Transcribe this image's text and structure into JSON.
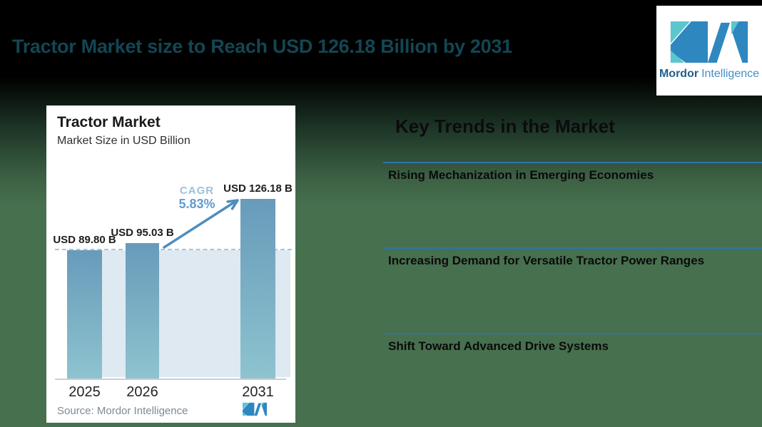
{
  "page": {
    "background_green": "#47704E",
    "background_black": "#000000",
    "title_color": "#134653"
  },
  "header": {
    "title": "Tractor Market size to Reach USD 126.18 Billion by 2031"
  },
  "brand": {
    "name_bold": "Mordor",
    "name_light": "Intelligence",
    "teal": "#5BC6CE",
    "blue": "#2F87C0"
  },
  "chart_card": {
    "title": "Tractor Market",
    "subtitle": "Market Size in USD Billion",
    "cagr_label": "CAGR",
    "cagr_value": "5.83%",
    "source_label": "Source:",
    "source_value": "Mordor Intelligence"
  },
  "chart_data": {
    "type": "bar",
    "title": "Tractor Market",
    "ylabel": "Market Size in USD Billion",
    "categories": [
      "2025",
      "2026",
      "2031"
    ],
    "values": [
      89.8,
      95.03,
      126.18
    ],
    "value_labels": [
      "USD 89.80 B",
      "USD 95.03 B",
      "USD 126.18 B"
    ],
    "ylim": [
      0,
      135
    ],
    "grid": false,
    "annotations": {
      "cagr_label": "CAGR",
      "cagr_value": "5.83%",
      "dashed_baseline_value": 89.8,
      "arrow": "from 2026 bar to 2031 bar"
    },
    "bar_color_top": "#679BBA",
    "bar_color_bottom": "#8EC3CF",
    "shade_color": "#DEE9F2",
    "dash_color": "#A5C7DC",
    "arrow_color": "#4E8DBE"
  },
  "trends": {
    "heading": "Key Trends in the Market",
    "line_color": "#2E74B0",
    "items": [
      {
        "label": "Rising Mechanization in Emerging Economies"
      },
      {
        "label": "Increasing Demand for Versatile Tractor Power Ranges"
      },
      {
        "label": "Shift Toward Advanced Drive Systems"
      }
    ]
  }
}
